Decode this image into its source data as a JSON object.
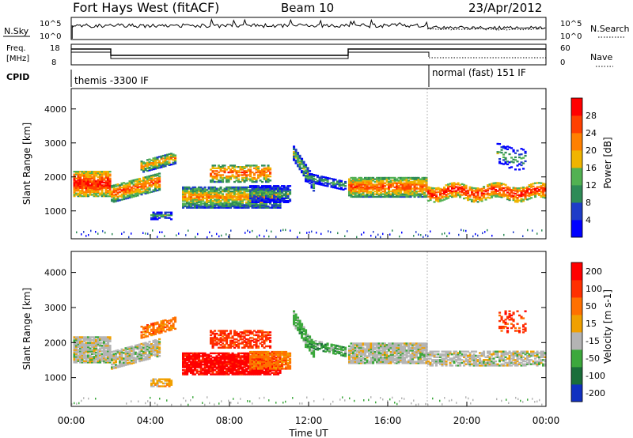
{
  "header": {
    "title": "Fort Hays West (fitACF)",
    "beam": "Beam 10",
    "date": "23/Apr/2012"
  },
  "top_panels": {
    "nsky_label": "N.Sky",
    "nsearch_label": "N.Search",
    "freq_label_1": "Freq.",
    "freq_label_2": "[MHz]",
    "nave_label": "Nave",
    "cpid_label": "CPID",
    "nsky_ticks": [
      "10^5",
      "10^0"
    ],
    "nsearch_ticks": [
      "10^5",
      "10^0"
    ],
    "freq_ticks": [
      "18",
      "8"
    ],
    "nave_ticks": [
      "60",
      "0"
    ],
    "cpid_segments": [
      {
        "label": "themis -3300 IF",
        "start_hour": 0,
        "end_hour": 18
      },
      {
        "label": "normal (fast) 151 IF",
        "start_hour": 18,
        "end_hour": 24
      }
    ]
  },
  "colors": {
    "power": [
      "#0000ff",
      "#1e3cc8",
      "#2e8b57",
      "#52b152",
      "#f0b400",
      "#ff8000",
      "#ff4000",
      "#ff0000"
    ],
    "velocity": [
      "#1030c0",
      "#1a6e3a",
      "#3ca83c",
      "#b4b4b4",
      "#f0a000",
      "#ff7000",
      "#ff3000",
      "#ff0000"
    ]
  },
  "chart_data": [
    {
      "type": "heatmap",
      "name": "power",
      "ylabel": "Slant Range [km]",
      "ylim": [
        180,
        4600
      ],
      "yticks": [
        "1000",
        "2000",
        "3000",
        "4000"
      ],
      "colorbar_label": "Power [dB]",
      "colorbar_ticks": [
        "4",
        "8",
        "12",
        "16",
        "20",
        "24",
        "28"
      ],
      "xlim": [
        0,
        24
      ]
    },
    {
      "type": "heatmap",
      "name": "velocity",
      "ylabel": "Slant Range [km]",
      "ylim": [
        180,
        4600
      ],
      "yticks": [
        "1000",
        "2000",
        "3000",
        "4000"
      ],
      "colorbar_label": "Velocity [m s-1]",
      "colorbar_ticks": [
        "200",
        "100",
        "50",
        "15",
        "-15",
        "-50",
        "-100",
        "-200"
      ],
      "xlim": [
        0,
        24
      ],
      "xticks": [
        "00:00",
        "04:00",
        "08:00",
        "12:00",
        "16:00",
        "20:00",
        "00:00"
      ],
      "xlabel": "Time UT"
    }
  ]
}
